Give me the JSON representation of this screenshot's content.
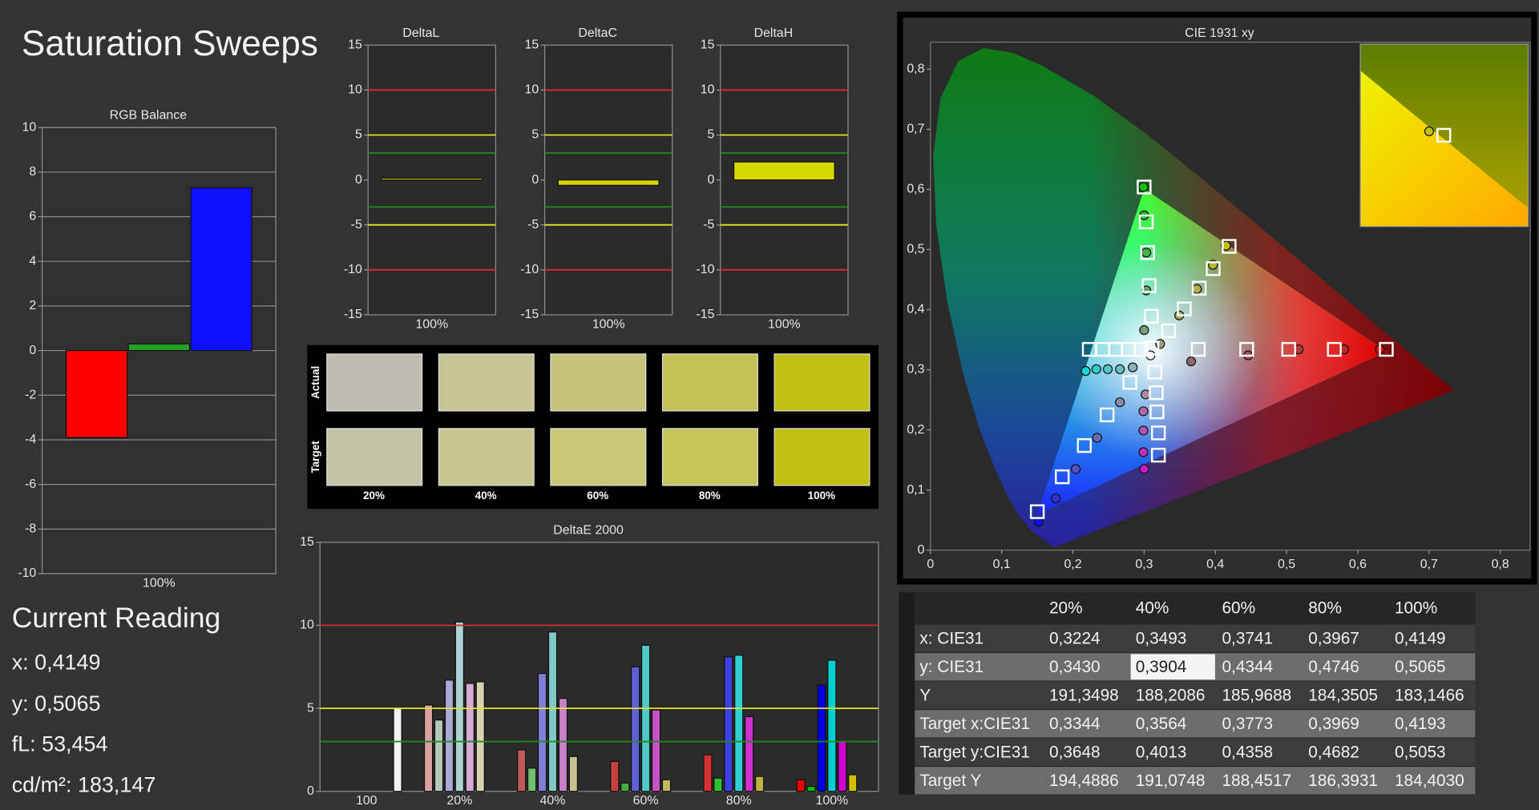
{
  "title": "Saturation Sweeps",
  "current_reading": {
    "title": "Current Reading",
    "lines": [
      "x: 0,4149",
      "y: 0,5065",
      "fL: 53,454",
      "cd/m²: 183,147"
    ]
  },
  "chart_data": [
    {
      "type": "bar",
      "title": "RGB Balance",
      "categories": [
        "100%"
      ],
      "series": [
        {
          "color": "#ff0000",
          "values": [
            -3.9
          ]
        },
        {
          "color": "#22a022",
          "values": [
            0.3
          ]
        },
        {
          "color": "#1010ff",
          "values": [
            7.3
          ]
        }
      ],
      "ylim": [
        -10,
        10
      ],
      "yticks": [
        -10,
        -8,
        -6,
        -4,
        -2,
        0,
        2,
        4,
        6,
        8,
        10
      ],
      "grid": true
    },
    {
      "type": "bar",
      "title": "DeltaL",
      "categories": [
        "100%"
      ],
      "values": [
        0.2
      ],
      "color": "#d6d600",
      "ylim": [
        -15,
        15
      ],
      "yticks": [
        -15,
        -10,
        -5,
        0,
        5,
        10,
        15
      ],
      "grid": false,
      "ref_lines": [
        {
          "value": 10,
          "color": "#e02828"
        },
        {
          "value": 5,
          "color": "#e6e620"
        },
        {
          "value": 3,
          "color": "#1f8a1f"
        },
        {
          "value": -3,
          "color": "#1f8a1f"
        },
        {
          "value": -5,
          "color": "#e6e620"
        },
        {
          "value": -10,
          "color": "#e02828"
        }
      ]
    },
    {
      "type": "bar",
      "title": "DeltaC",
      "categories": [
        "100%"
      ],
      "values": [
        -0.6
      ],
      "color": "#d6d600",
      "ylim": [
        -15,
        15
      ],
      "yticks": [
        -15,
        -10,
        -5,
        0,
        5,
        10,
        15
      ],
      "grid": false,
      "ref_lines": [
        {
          "value": 10,
          "color": "#e02828"
        },
        {
          "value": 5,
          "color": "#e6e620"
        },
        {
          "value": 3,
          "color": "#1f8a1f"
        },
        {
          "value": -3,
          "color": "#1f8a1f"
        },
        {
          "value": -5,
          "color": "#e6e620"
        },
        {
          "value": -10,
          "color": "#e02828"
        }
      ]
    },
    {
      "type": "bar",
      "title": "DeltaH",
      "categories": [
        "100%"
      ],
      "values": [
        2.0
      ],
      "color": "#d6d600",
      "ylim": [
        -15,
        15
      ],
      "yticks": [
        -15,
        -10,
        -5,
        0,
        5,
        10,
        15
      ],
      "grid": false,
      "ref_lines": [
        {
          "value": 10,
          "color": "#e02828"
        },
        {
          "value": 5,
          "color": "#e6e620"
        },
        {
          "value": 3,
          "color": "#1f8a1f"
        },
        {
          "value": -3,
          "color": "#1f8a1f"
        },
        {
          "value": -5,
          "color": "#e6e620"
        },
        {
          "value": -10,
          "color": "#e02828"
        }
      ]
    },
    {
      "type": "swatch",
      "rows": [
        "Actual",
        "Target"
      ],
      "categories": [
        "20%",
        "40%",
        "60%",
        "80%",
        "100%"
      ],
      "colors": [
        [
          "#bfbdaf",
          "#c8c594",
          "#c7c47a",
          "#c3c158",
          "#c2c112"
        ],
        [
          "#c2c3a7",
          "#c8c791",
          "#c9c878",
          "#c4c45a",
          "#c0be0e"
        ]
      ]
    },
    {
      "type": "bar",
      "title": "DeltaE 2000",
      "categories": [
        "100",
        "20%",
        "40%",
        "60%",
        "80%",
        "100%"
      ],
      "series": [
        {
          "values": [
            null,
            5.2,
            2.5,
            1.8,
            2.2,
            0.7
          ],
          "colors": [
            null,
            "#d9a0a0",
            "#c05a5a",
            "#c84040",
            "#d83030",
            "#e80000"
          ]
        },
        {
          "values": [
            null,
            4.3,
            1.4,
            0.5,
            0.8,
            0.3
          ],
          "colors": [
            null,
            "#b6c9b6",
            "#6fbf6f",
            "#40b040",
            "#30c030",
            "#00c000"
          ]
        },
        {
          "values": [
            null,
            6.7,
            7.1,
            7.5,
            8.1,
            6.4
          ],
          "colors": [
            null,
            "#a9a9d6",
            "#8080d8",
            "#6060d8",
            "#4040e0",
            "#0000e0"
          ]
        },
        {
          "values": [
            null,
            10.2,
            9.6,
            8.8,
            8.2,
            7.9
          ],
          "colors": [
            null,
            "#a9d3d3",
            "#80caca",
            "#50c8c8",
            "#30d0d0",
            "#00d0d0"
          ]
        },
        {
          "values": [
            null,
            6.5,
            5.6,
            4.9,
            4.5,
            3.0
          ],
          "colors": [
            null,
            "#d6a9d6",
            "#c880c8",
            "#c850c8",
            "#d030d0",
            "#d000d0"
          ]
        },
        {
          "values": [
            null,
            6.6,
            2.1,
            0.7,
            0.9,
            1.0
          ],
          "colors": [
            null,
            "#d8d3b0",
            "#c8c090",
            "#c0b860",
            "#c0b040",
            "#d0c000"
          ]
        },
        {
          "values": [
            5.0,
            null,
            null,
            null,
            null,
            null
          ],
          "colors": [
            "#f2f2f2",
            null,
            null,
            null,
            null,
            null
          ]
        }
      ],
      "ylim": [
        0,
        15
      ],
      "yticks": [
        0,
        5,
        10,
        15
      ],
      "grid": false,
      "ref_lines": [
        {
          "value": 10,
          "color": "#e02828"
        },
        {
          "value": 5,
          "color": "#e6e620"
        },
        {
          "value": 3,
          "color": "#1f8a1f"
        }
      ]
    },
    {
      "type": "scatter",
      "title": "CIE 1931 xy",
      "xlim": [
        0,
        0.842
      ],
      "ylim": [
        0,
        0.845
      ],
      "xticks": [
        0,
        {
          "value": 0.1,
          "label": "0,1"
        },
        {
          "value": 0.2,
          "label": "0,2"
        },
        {
          "value": 0.3,
          "label": "0,3"
        },
        {
          "value": 0.4,
          "label": "0,4"
        },
        {
          "value": 0.5,
          "label": "0,5"
        },
        {
          "value": 0.6,
          "label": "0,6"
        },
        {
          "value": 0.7,
          "label": "0,7"
        },
        {
          "value": 0.8,
          "label": "0,8"
        }
      ],
      "yticks": [
        0,
        {
          "value": 0.1,
          "label": "0,1"
        },
        {
          "value": 0.2,
          "label": "0,2"
        },
        {
          "value": 0.3,
          "label": "0,3"
        },
        {
          "value": 0.4,
          "label": "0,4"
        },
        {
          "value": 0.5,
          "label": "0,5"
        },
        {
          "value": 0.6,
          "label": "0,6"
        },
        {
          "value": 0.7,
          "label": "0,7"
        },
        {
          "value": 0.8,
          "label": "0,8"
        }
      ],
      "series": [
        {
          "marker": "circle",
          "color": "#ffffff",
          "x": [
            0.309
          ],
          "values": [
            0.324
          ]
        },
        {
          "marker": "circle",
          "colors": [
            "#8a6a6a",
            "#a05050",
            "#b03a3a",
            "#c02828",
            "#d01010"
          ],
          "x": [
            0.366,
            0.446,
            0.517,
            0.581,
            0.631
          ],
          "values": [
            0.314,
            0.324,
            0.334,
            0.334,
            0.334
          ]
        },
        {
          "marker": "circle",
          "colors": [
            "#7aa07a",
            "#60a860",
            "#48b048",
            "#30b830",
            "#10c010"
          ],
          "x": [
            0.3,
            0.303,
            0.303,
            0.3,
            0.299
          ],
          "values": [
            0.366,
            0.432,
            0.495,
            0.557,
            0.604
          ]
        },
        {
          "marker": "circle",
          "colors": [
            "#8a8aa8",
            "#6a6ab8",
            "#5050c8",
            "#3030d8",
            "#1010e8"
          ],
          "x": [
            0.266,
            0.234,
            0.204,
            0.176,
            0.152
          ],
          "values": [
            0.246,
            0.187,
            0.135,
            0.086,
            0.047
          ]
        },
        {
          "marker": "circle",
          "colors": [
            "#8ab4b4",
            "#6ac0c0",
            "#50c8c8",
            "#30d0d0",
            "#10d8d8"
          ],
          "x": [
            0.284,
            0.266,
            0.249,
            0.233,
            0.218
          ],
          "values": [
            0.304,
            0.301,
            0.301,
            0.301,
            0.298
          ]
        },
        {
          "marker": "circle",
          "colors": [
            "#a88aa8",
            "#b06ab0",
            "#b850b8",
            "#c030c0",
            "#c818c8"
          ],
          "x": [
            0.302,
            0.299,
            0.299,
            0.299,
            0.3
          ],
          "values": [
            0.259,
            0.231,
            0.199,
            0.163,
            0.135
          ]
        },
        {
          "marker": "circle",
          "colors": [
            "#a0a080",
            "#a8a860",
            "#b0b048",
            "#b8b830",
            "#c0c010"
          ],
          "x": [
            0.3224,
            0.3493,
            0.3741,
            0.3967,
            0.4149
          ],
          "values": [
            0.343,
            0.3904,
            0.4344,
            0.4746,
            0.5065
          ]
        },
        {
          "marker": "square",
          "color": "#ffffff",
          "x": [
            0.311,
            0.376,
            0.444,
            0.503,
            0.567,
            0.64,
            0.31,
            0.307,
            0.305,
            0.303,
            0.3,
            0.28,
            0.248,
            0.216,
            0.185,
            0.15,
            0.296,
            0.278,
            0.26,
            0.242,
            0.223,
            0.315,
            0.317,
            0.318,
            0.32,
            0.32,
            0.3344,
            0.3564,
            0.3773,
            0.3969,
            0.4193
          ],
          "values": [
            0.336,
            0.334,
            0.334,
            0.334,
            0.334,
            0.334,
            0.389,
            0.44,
            0.495,
            0.546,
            0.604,
            0.279,
            0.225,
            0.174,
            0.122,
            0.064,
            0.334,
            0.334,
            0.334,
            0.334,
            0.334,
            0.296,
            0.262,
            0.23,
            0.195,
            0.158,
            0.3648,
            0.4013,
            0.4358,
            0.4682,
            0.5053
          ]
        }
      ]
    }
  ],
  "table": {
    "header": [
      "20%",
      "40%",
      "60%",
      "80%",
      "100%"
    ],
    "rows": [
      [
        "x: CIE31",
        "0,3224",
        "0,3493",
        "0,3741",
        "0,3967",
        "0,4149"
      ],
      [
        "y: CIE31",
        "0,3430",
        "0,3904",
        "0,4344",
        "0,4746",
        "0,5065"
      ],
      [
        "Y",
        "191,3498",
        "188,2086",
        "185,9688",
        "184,3505",
        "183,1466"
      ],
      [
        "Target x:CIE31",
        "0,3344",
        "0,3564",
        "0,3773",
        "0,3969",
        "0,4193"
      ],
      [
        "Target y:CIE31",
        "0,3648",
        "0,4013",
        "0,4358",
        "0,4682",
        "0,5053"
      ],
      [
        "Target Y",
        "194,4886",
        "191,0748",
        "188,4517",
        "186,3931",
        "184,4030"
      ]
    ]
  }
}
